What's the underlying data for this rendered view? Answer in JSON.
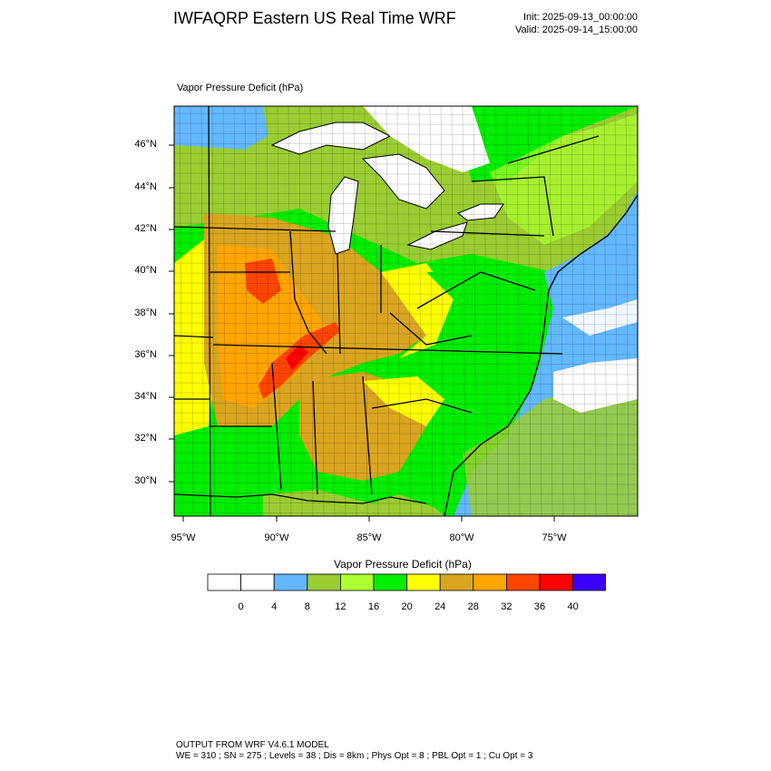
{
  "header": {
    "title": "IWFAQRP Eastern US Real Time WRF",
    "init": "Init: 2025-09-13_00:00:00",
    "valid": "Valid: 2025-09-14_15:00:00"
  },
  "map": {
    "field_label": "Vapor Pressure Deficit   (hPa)",
    "lat_labels": [
      "46°N",
      "44°N",
      "42°N",
      "40°N",
      "38°N",
      "36°N",
      "34°N",
      "32°N",
      "30°N"
    ],
    "lon_labels": [
      "95°W",
      "90°W",
      "85°W",
      "80°W",
      "75°W"
    ]
  },
  "legend": {
    "title": "Vapor Pressure Deficit  (hPa)",
    "ticks": [
      "0",
      "4",
      "8",
      "12",
      "16",
      "20",
      "24",
      "28",
      "32",
      "36",
      "40"
    ],
    "colors": [
      "#ffffff",
      "#ffffff",
      "#63b8ff",
      "#9acd32",
      "#adff2f",
      "#00ee00",
      "#ffff00",
      "#daa520",
      "#ffa500",
      "#ff4500",
      "#ff0000",
      "#3a00ff"
    ]
  },
  "footer": {
    "line1": "OUTPUT FROM WRF V4.6.1 MODEL",
    "line2": "WE = 310 ; SN = 275 ; Levels = 38 ; Dis = 8km ; Phys Opt = 8 ; PBL Opt = 1 ; Cu Opt = 3"
  }
}
